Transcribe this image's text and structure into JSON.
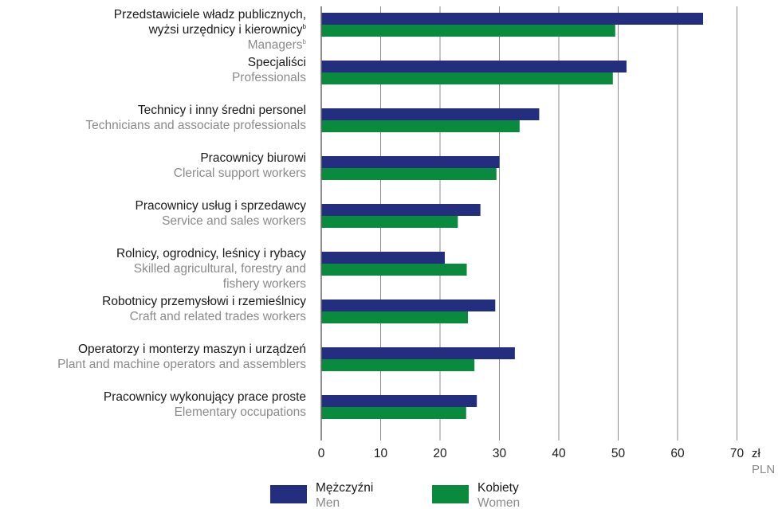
{
  "chart_data": {
    "type": "bar",
    "orientation": "horizontal",
    "categories": [
      {
        "pl": "Przedstawiciele władz publicznych,",
        "pl2": "wyżsi urzędnicy i kierownicy",
        "pl2_sup": "b",
        "en": "Managers",
        "en_sup": "b"
      },
      {
        "pl": "Specjaliści",
        "en": "Professionals"
      },
      {
        "pl": "Technicy i inny średni personel",
        "en": "Technicians and associate professionals"
      },
      {
        "pl": "Pracownicy biurowi",
        "en": "Clerical support workers"
      },
      {
        "pl": "Pracownicy usług i sprzedawcy",
        "en": "Service and sales workers"
      },
      {
        "pl": "Rolnicy, ogrodnicy, leśnicy i rybacy",
        "en": "Skilled agricultural, forestry and",
        "en2": "fishery workers"
      },
      {
        "pl": "Robotnicy przemysłowi i rzemieślnicy",
        "en": "Craft and related trades workers"
      },
      {
        "pl": "Operatorzy i monterzy maszyn i urządzeń",
        "en": "Plant and machine operators and assemblers"
      },
      {
        "pl": "Pracownicy wykonujący prace proste",
        "en": "Elementary occupations"
      }
    ],
    "series": [
      {
        "name": "Mężczyźni",
        "name_en": "Men",
        "color": "#232f7e",
        "values": [
          64.3,
          51.4,
          36.7,
          30.0,
          26.8,
          20.8,
          29.3,
          32.6,
          26.2
        ]
      },
      {
        "name": "Kobiety",
        "name_en": "Women",
        "color": "#0a8a3c",
        "values": [
          49.5,
          49.1,
          33.4,
          29.5,
          23.0,
          24.5,
          24.7,
          25.8,
          24.4
        ]
      }
    ],
    "xlim": [
      0,
      70
    ],
    "xticks": [
      0,
      10,
      20,
      30,
      40,
      50,
      60,
      70
    ],
    "xunit": "zł",
    "xunit_en": "PLN",
    "grid": true,
    "legend_position": "bottom"
  }
}
